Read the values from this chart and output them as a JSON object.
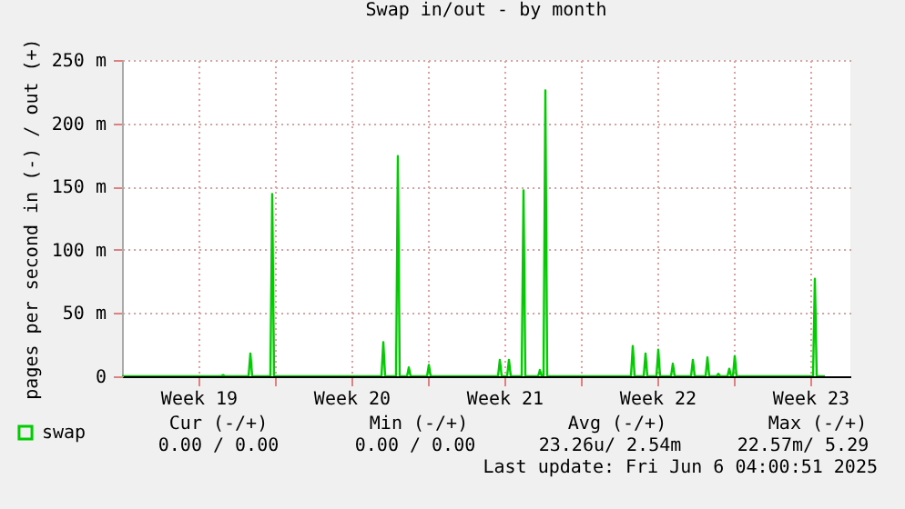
{
  "chart_data": {
    "type": "line",
    "title": "Swap in/out - by month",
    "ylabel": "pages per second in (-) / out (+)",
    "xlim": [
      "2025-05-05",
      "2025-06-07T08:00"
    ],
    "ylim": [
      0,
      250
    ],
    "xticks": [
      {
        "value": "2025-05-08T12:00",
        "label": "Week 19"
      },
      {
        "value": "2025-05-12",
        "label": null
      },
      {
        "value": "2025-05-15T12:00",
        "label": "Week 20"
      },
      {
        "value": "2025-05-19",
        "label": null
      },
      {
        "value": "2025-05-22T12:00",
        "label": "Week 21"
      },
      {
        "value": "2025-05-26",
        "label": null
      },
      {
        "value": "2025-05-29T12:00",
        "label": "Week 22"
      },
      {
        "value": "2025-06-02",
        "label": null
      },
      {
        "value": "2025-06-05T12:00",
        "label": "Week 23"
      }
    ],
    "yticks": [
      0,
      {
        "value": 50,
        "label": "50 m"
      },
      {
        "value": 100,
        "label": "100 m"
      },
      {
        "value": 150,
        "label": "150 m"
      },
      {
        "value": 200,
        "label": "200 m"
      },
      {
        "value": 250,
        "label": "250 m"
      }
    ],
    "grid": true,
    "legend": "bottom",
    "marker": "none",
    "line_style": "solid",
    "series": [
      {
        "name": "swap",
        "color": "#00cc00",
        "x": [
          "2025-05-05",
          "2025-05-09T13:00",
          "2025-05-09T15:00",
          "2025-05-09T17:00",
          "2025-05-10T19:00",
          "2025-05-10T21:00",
          "2025-05-10T23:00",
          "2025-05-11T19:00",
          "2025-05-11T21:00",
          "2025-05-11T23:00",
          "2025-05-16T21:00",
          "2025-05-16T23:00",
          "2025-05-17T01:00",
          "2025-05-17T13:00",
          "2025-05-17T15:00",
          "2025-05-17T17:00",
          "2025-05-18T01:00",
          "2025-05-18T03:00",
          "2025-05-18T05:00",
          "2025-05-18T23:00",
          "2025-05-19T01:00",
          "2025-05-19T03:00",
          "2025-05-22T05:00",
          "2025-05-22T07:00",
          "2025-05-22T09:00",
          "2025-05-22T15:00",
          "2025-05-22T17:00",
          "2025-05-22T19:00",
          "2025-05-23T07:00",
          "2025-05-23T09:00",
          "2025-05-23T11:00",
          "2025-05-24T01:00",
          "2025-05-24T03:00",
          "2025-05-24T05:00",
          "2025-05-24T07:00",
          "2025-05-24T09:00",
          "2025-05-24T11:00",
          "2025-05-28T07:00",
          "2025-05-28T09:00",
          "2025-05-28T11:00",
          "2025-05-28T21:00",
          "2025-05-28T23:00",
          "2025-05-29T01:00",
          "2025-05-29T11:00",
          "2025-05-29T13:00",
          "2025-05-29T15:00",
          "2025-05-30T03:00",
          "2025-05-30T05:00",
          "2025-05-30T07:00",
          "2025-05-31T01:00",
          "2025-05-31T03:00",
          "2025-05-31T05:00",
          "2025-05-31T17:00",
          "2025-05-31T19:00",
          "2025-05-31T21:00",
          "2025-06-01T05:00",
          "2025-06-01T07:00",
          "2025-06-01T09:00",
          "2025-06-01T17:00",
          "2025-06-01T19:00",
          "2025-06-01T21:00",
          "2025-06-01T23:00",
          "2025-06-02T01:00",
          "2025-06-02T03:00",
          "2025-06-05T15:00",
          "2025-06-05T17:00",
          "2025-06-05T19:00",
          "2025-06-06T04:00"
        ],
        "values": [
          0,
          0,
          1,
          0,
          0,
          18,
          0,
          0,
          144,
          0,
          0,
          27,
          0,
          0,
          174,
          0,
          0,
          7,
          0,
          0,
          9,
          0,
          0,
          13,
          0,
          0,
          13,
          0,
          0,
          147,
          0,
          0,
          5,
          0,
          0,
          226,
          0,
          0,
          24,
          0,
          0,
          18,
          0,
          0,
          21,
          0,
          0,
          10,
          0,
          0,
          13,
          0,
          0,
          15,
          0,
          0,
          2,
          0,
          0,
          6,
          0,
          0,
          16,
          0,
          0,
          77,
          0,
          0
        ]
      }
    ],
    "annotations": [
      "Cur (-/+)",
      "Min (-/+)",
      "Avg (-/+)",
      "Max (-/+)",
      "0.00 /  0.00",
      "0.00 /  0.00",
      "23.26u/  2.54m",
      "22.57m/  5.29",
      "Last update: Fri Jun  6 04:00:51 2025"
    ]
  }
}
